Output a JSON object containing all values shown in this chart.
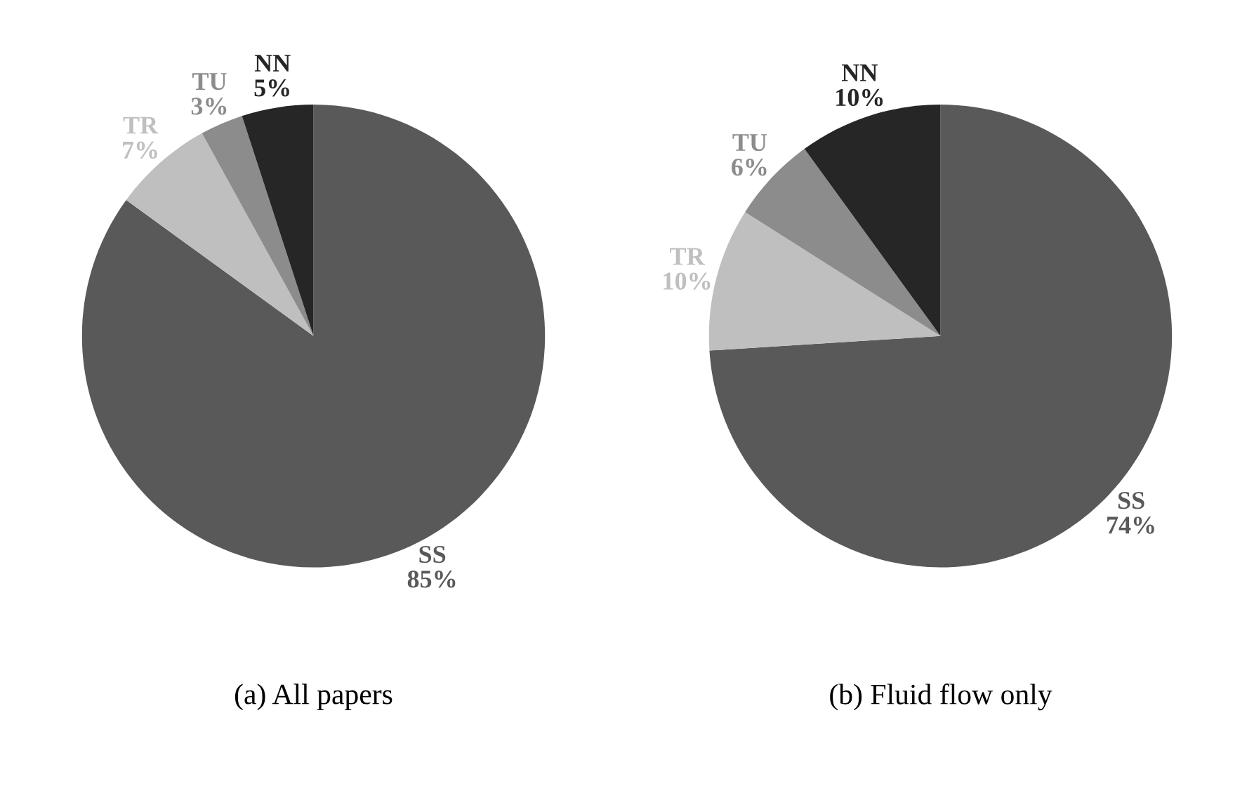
{
  "chart_data": [
    {
      "type": "pie",
      "title": "(a) All papers",
      "categories": [
        "SS",
        "TR",
        "TU",
        "NN"
      ],
      "values": [
        85,
        7,
        3,
        5
      ],
      "colors": [
        "#595959",
        "#bfbfbf",
        "#8c8c8c",
        "#262626"
      ],
      "value_labels": [
        "85%",
        "7%",
        "3%",
        "5%"
      ]
    },
    {
      "type": "pie",
      "title": "(b) Fluid flow only",
      "categories": [
        "SS",
        "TR",
        "TU",
        "NN"
      ],
      "values": [
        74,
        10,
        6,
        10
      ],
      "colors": [
        "#595959",
        "#bfbfbf",
        "#8c8c8c",
        "#262626"
      ],
      "value_labels": [
        "74%",
        "10%",
        "6%",
        "10%"
      ]
    }
  ]
}
